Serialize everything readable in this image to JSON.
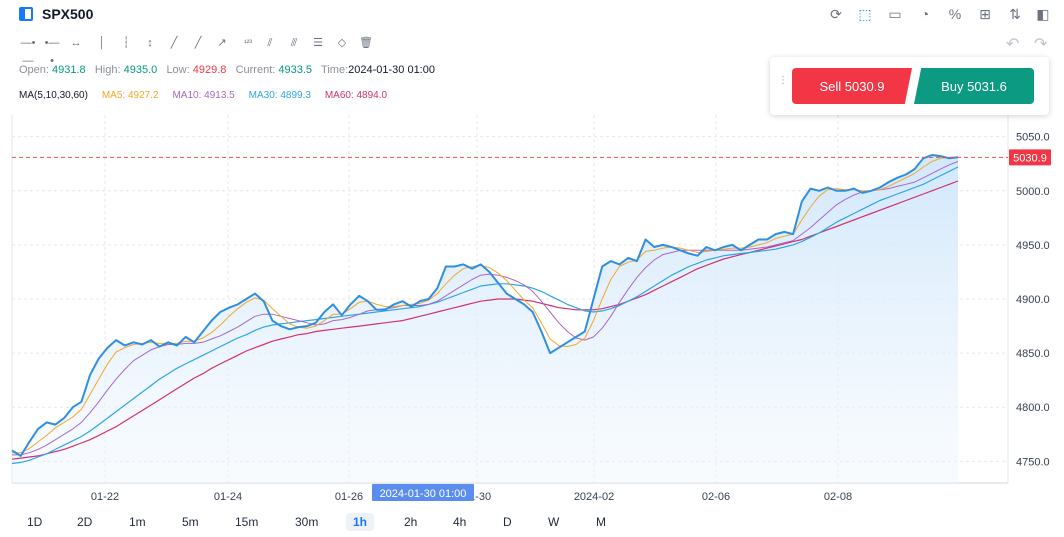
{
  "header": {
    "symbol": "SPX500",
    "toolbar_icons": [
      "refresh-icon",
      "drawing-icon",
      "chart-type-icon",
      "pie-icon",
      "percent-icon",
      "layout-icon",
      "compare-icon",
      "panel-icon"
    ]
  },
  "drawing_tools": [
    "horizontal-line-icon",
    "horizontal-ray-icon",
    "horizontal-segment-icon",
    "vertical-line-icon",
    "vertical-ray-icon",
    "vertical-segment-icon",
    "trend-line-icon",
    "ray-icon",
    "segment-icon",
    "price-line-icon",
    "parallel-line-icon",
    "channel-icon",
    "fibonacci-icon",
    "eraser-icon",
    "trash-icon"
  ],
  "ohlc": {
    "open_label": "Open:",
    "open": "4931.8",
    "high_label": "High:",
    "high": "4935.0",
    "low_label": "Low:",
    "low": "4929.8",
    "current_label": "Current:",
    "current": "4933.5",
    "time_label": "Time:",
    "time": "2024-01-30 01:00"
  },
  "ma_legend": {
    "name": "MA(5,10,30,60)",
    "ma5": "MA5: 4927.2",
    "ma10": "MA10: 4913.5",
    "ma30": "MA30: 4899.3",
    "ma60": "MA60: 4894.0"
  },
  "colors": {
    "price": "#2f8fdf",
    "ma5": "#f5a623",
    "ma10": "#a867c9",
    "ma30": "#2fa4e7",
    "ma60": "#d0326f",
    "sell": "#f23645",
    "buy": "#0d9a83"
  },
  "trade": {
    "sell_label": "Sell 5030.9",
    "buy_label": "Buy 5031.6"
  },
  "chart_data": {
    "type": "line",
    "series_name": "SPX500",
    "y_ticks": [
      "5050.0",
      "5000.0",
      "4950.0",
      "4900.0",
      "4850.0",
      "4800.0",
      "4750.0"
    ],
    "x_ticks": [
      "01-22",
      "01-24",
      "01-26",
      "01-30",
      "2024-02",
      "02-06",
      "02-08"
    ],
    "crosshair_label": "2024-01-30 01:00",
    "last_price_label": "5030.9",
    "ylim": [
      4730,
      5070
    ],
    "grid": true,
    "price": [
      4760,
      4755,
      4768,
      4780,
      4786,
      4784,
      4790,
      4800,
      4805,
      4830,
      4845,
      4855,
      4862,
      4857,
      4860,
      4858,
      4862,
      4856,
      4860,
      4857,
      4865,
      4860,
      4870,
      4880,
      4888,
      4892,
      4895,
      4900,
      4905,
      4898,
      4880,
      4875,
      4872,
      4874,
      4875,
      4878,
      4888,
      4895,
      4885,
      4895,
      4903,
      4898,
      4890,
      4890,
      4895,
      4898,
      4893,
      4898,
      4900,
      4910,
      4930,
      4930,
      4932,
      4928,
      4932,
      4925,
      4915,
      4905,
      4900,
      4895,
      4888,
      4870,
      4850,
      4855,
      4860,
      4865,
      4870,
      4900,
      4930,
      4935,
      4932,
      4938,
      4935,
      4955,
      4948,
      4950,
      4948,
      4945,
      4942,
      4940,
      4948,
      4945,
      4948,
      4950,
      4945,
      4950,
      4955,
      4955,
      4960,
      4962,
      4960,
      4990,
      5002,
      5000,
      5003,
      5000,
      5000,
      5002,
      4998,
      5000,
      5003,
      5008,
      5012,
      5015,
      5020,
      5030,
      5033,
      5032,
      5030,
      5031
    ],
    "ma5": [
      4758,
      4758,
      4762,
      4768,
      4774,
      4781,
      4786,
      4791,
      4798,
      4812,
      4826,
      4840,
      4851,
      4855,
      4858,
      4859,
      4860,
      4859,
      4859,
      4859,
      4861,
      4861,
      4864,
      4869,
      4876,
      4884,
      4891,
      4897,
      4901,
      4899,
      4891,
      4884,
      4877,
      4874,
      4873,
      4875,
      4880,
      4886,
      4886,
      4891,
      4897,
      4898,
      4895,
      4893,
      4893,
      4894,
      4895,
      4896,
      4899,
      4905,
      4914,
      4922,
      4928,
      4930,
      4931,
      4929,
      4924,
      4917,
      4908,
      4899,
      4892,
      4878,
      4863,
      4857,
      4856,
      4858,
      4864,
      4880,
      4900,
      4918,
      4930,
      4934,
      4936,
      4944,
      4945,
      4947,
      4948,
      4947,
      4945,
      4943,
      4944,
      4945,
      4946,
      4947,
      4947,
      4948,
      4950,
      4952,
      4956,
      4958,
      4960,
      4973,
      4985,
      4995,
      5001,
      5002,
      5001,
      5001,
      5000,
      5000,
      5001,
      5004,
      5008,
      5012,
      5016,
      5022,
      5027,
      5030,
      5031,
      5031
    ],
    "ma10": [
      4756,
      4756,
      4758,
      4761,
      4765,
      4770,
      4775,
      4780,
      4786,
      4795,
      4805,
      4816,
      4826,
      4835,
      4843,
      4848,
      4853,
      4856,
      4858,
      4858,
      4859,
      4859,
      4860,
      4863,
      4866,
      4870,
      4874,
      4879,
      4884,
      4886,
      4886,
      4884,
      4882,
      4880,
      4878,
      4876,
      4877,
      4880,
      4881,
      4883,
      4886,
      4889,
      4890,
      4891,
      4892,
      4894,
      4894,
      4894,
      4895,
      4898,
      4903,
      4908,
      4913,
      4918,
      4922,
      4923,
      4922,
      4920,
      4917,
      4913,
      4907,
      4898,
      4888,
      4878,
      4870,
      4864,
      4862,
      4865,
      4873,
      4884,
      4897,
      4909,
      4920,
      4929,
      4936,
      4941,
      4943,
      4945,
      4945,
      4945,
      4945,
      4945,
      4945,
      4945,
      4945,
      4946,
      4947,
      4948,
      4950,
      4952,
      4954,
      4960,
      4966,
      4973,
      4980,
      4987,
      4992,
      4996,
      4999,
      5000,
      5001,
      5002,
      5004,
      5006,
      5008,
      5012,
      5016,
      5020,
      5024,
      5027
    ],
    "ma30": [
      4748,
      4749,
      4751,
      4754,
      4757,
      4761,
      4765,
      4769,
      4773,
      4778,
      4784,
      4790,
      4796,
      4802,
      4808,
      4814,
      4820,
      4826,
      4831,
      4836,
      4840,
      4844,
      4848,
      4852,
      4856,
      4860,
      4864,
      4867,
      4871,
      4874,
      4876,
      4877,
      4878,
      4879,
      4880,
      4881,
      4882,
      4883,
      4884,
      4885,
      4886,
      4887,
      4888,
      4889,
      4890,
      4891,
      4892,
      4893,
      4895,
      4897,
      4900,
      4903,
      4906,
      4909,
      4912,
      4913,
      4914,
      4914,
      4913,
      4912,
      4910,
      4907,
      4903,
      4899,
      4895,
      4892,
      4889,
      4888,
      4889,
      4891,
      4894,
      4898,
      4902,
      4907,
      4912,
      4917,
      4922,
      4926,
      4930,
      4933,
      4936,
      4938,
      4940,
      4941,
      4942,
      4943,
      4944,
      4945,
      4946,
      4948,
      4950,
      4953,
      4957,
      4961,
      4966,
      4971,
      4975,
      4979,
      4983,
      4987,
      4991,
      4994,
      4997,
      5000,
      5003,
      5006,
      5010,
      5014,
      5018,
      5022
    ],
    "ma60": [
      4752,
      4753,
      4754,
      4755,
      4757,
      4759,
      4761,
      4764,
      4767,
      4770,
      4774,
      4778,
      4782,
      4787,
      4792,
      4797,
      4802,
      4807,
      4812,
      4817,
      4822,
      4827,
      4831,
      4836,
      4840,
      4844,
      4848,
      4852,
      4855,
      4858,
      4861,
      4863,
      4865,
      4867,
      4868,
      4870,
      4871,
      4872,
      4873,
      4874,
      4875,
      4876,
      4877,
      4878,
      4879,
      4880,
      4882,
      4884,
      4886,
      4888,
      4890,
      4892,
      4894,
      4896,
      4898,
      4899,
      4900,
      4900,
      4900,
      4899,
      4898,
      4896,
      4894,
      4892,
      4891,
      4890,
      4890,
      4890,
      4891,
      4893,
      4895,
      4898,
      4901,
      4904,
      4908,
      4912,
      4916,
      4920,
      4924,
      4928,
      4931,
      4934,
      4937,
      4939,
      4941,
      4943,
      4945,
      4947,
      4949,
      4951,
      4953,
      4955,
      4958,
      4961,
      4964,
      4967,
      4970,
      4973,
      4976,
      4979,
      4982,
      4985,
      4988,
      4991,
      4994,
      4997,
      5000,
      5003,
      5006,
      5009
    ]
  },
  "periods": [
    "1D",
    "2D",
    "1m",
    "5m",
    "15m",
    "30m",
    "1h",
    "2h",
    "4h",
    "D",
    "W",
    "M"
  ],
  "active_period": "1h"
}
